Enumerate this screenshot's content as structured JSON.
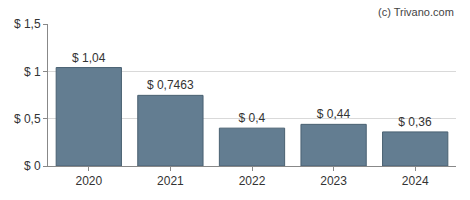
{
  "chart_data": {
    "type": "bar",
    "categories": [
      "2020",
      "2021",
      "2022",
      "2023",
      "2024"
    ],
    "values": [
      1.04,
      0.7463,
      0.4,
      0.44,
      0.36
    ],
    "value_labels": [
      "$ 1,04",
      "$ 0,7463",
      "$ 0,4",
      "$ 0,44",
      "$ 0,36"
    ],
    "data_labels": true,
    "color": "#637d91",
    "ylim": [
      0,
      1.5
    ],
    "yticks": [
      {
        "value": 0,
        "label": "$ 0"
      },
      {
        "value": 0.5,
        "label": "$ 0,5"
      },
      {
        "value": 1,
        "label": "$ 1"
      },
      {
        "value": 1.5,
        "label": "$ 1,5"
      }
    ],
    "grid": true,
    "annotations": [
      "(c) Trivano.com"
    ]
  }
}
